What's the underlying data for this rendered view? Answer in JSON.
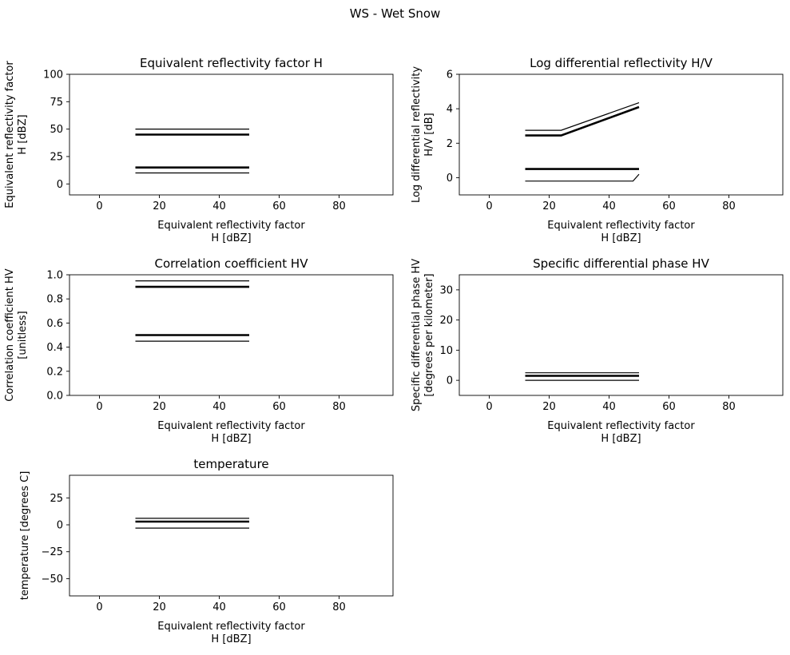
{
  "figure": {
    "title": "WS - Wet Snow"
  },
  "chart_data": [
    {
      "type": "line",
      "title": "Equivalent reflectivity factor H",
      "xlabel": [
        "Equivalent reflectivity factor",
        "H [dBZ]"
      ],
      "ylabel": [
        "Equivalent reflectivity factor",
        "H [dBZ]"
      ],
      "xlim": [
        -10,
        98
      ],
      "ylim": [
        -10,
        100
      ],
      "xticks": [
        0,
        20,
        40,
        60,
        80
      ],
      "yticks": [
        0,
        25,
        50,
        75,
        100
      ],
      "series": [
        {
          "x": [
            12,
            50
          ],
          "y": [
            50,
            50
          ],
          "weight": "thin"
        },
        {
          "x": [
            12,
            50
          ],
          "y": [
            45,
            45
          ],
          "weight": "thick"
        },
        {
          "x": [
            12,
            50
          ],
          "y": [
            15,
            15
          ],
          "weight": "thick"
        },
        {
          "x": [
            12,
            50
          ],
          "y": [
            10,
            10
          ],
          "weight": "thin"
        }
      ]
    },
    {
      "type": "line",
      "title": "Log differential reflectivity H/V",
      "xlabel": [
        "Equivalent reflectivity factor",
        "H [dBZ]"
      ],
      "ylabel": [
        "Log differential reflectivity",
        "H/V [dB]"
      ],
      "xlim": [
        -10,
        98
      ],
      "ylim": [
        -1,
        6
      ],
      "xticks": [
        0,
        20,
        40,
        60,
        80
      ],
      "yticks": [
        0,
        2,
        4,
        6
      ],
      "series": [
        {
          "x": [
            12,
            24,
            50
          ],
          "y": [
            2.75,
            2.75,
            4.35
          ],
          "weight": "thin"
        },
        {
          "x": [
            12,
            24,
            50
          ],
          "y": [
            2.45,
            2.45,
            4.1
          ],
          "weight": "thick"
        },
        {
          "x": [
            12,
            50
          ],
          "y": [
            0.5,
            0.5
          ],
          "weight": "thick"
        },
        {
          "x": [
            12,
            48,
            50
          ],
          "y": [
            -0.2,
            -0.2,
            0.2
          ],
          "weight": "thin"
        }
      ]
    },
    {
      "type": "line",
      "title": "Correlation coefficient HV",
      "xlabel": [
        "Equivalent reflectivity factor",
        "H [dBZ]"
      ],
      "ylabel": [
        "Correlation coefficient HV",
        "[unitless]"
      ],
      "xlim": [
        -10,
        98
      ],
      "ylim": [
        0,
        1
      ],
      "xticks": [
        0,
        20,
        40,
        60,
        80
      ],
      "yticks": [
        0.0,
        0.2,
        0.4,
        0.6,
        0.8,
        1.0
      ],
      "ytick_labels": [
        "0.0",
        "0.2",
        "0.4",
        "0.6",
        "0.8",
        "1.0"
      ],
      "series": [
        {
          "x": [
            12,
            50
          ],
          "y": [
            0.95,
            0.95
          ],
          "weight": "thin"
        },
        {
          "x": [
            12,
            50
          ],
          "y": [
            0.9,
            0.9
          ],
          "weight": "thick"
        },
        {
          "x": [
            12,
            50
          ],
          "y": [
            0.5,
            0.5
          ],
          "weight": "thick"
        },
        {
          "x": [
            12,
            50
          ],
          "y": [
            0.45,
            0.45
          ],
          "weight": "thin"
        }
      ]
    },
    {
      "type": "line",
      "title": "Specific differential phase HV",
      "xlabel": [
        "Equivalent reflectivity factor",
        "H [dBZ]"
      ],
      "ylabel": [
        "Specific differential phase HV",
        "[degrees per kilometer]"
      ],
      "xlim": [
        -10,
        98
      ],
      "ylim": [
        -5,
        35
      ],
      "xticks": [
        0,
        20,
        40,
        60,
        80
      ],
      "yticks": [
        0,
        10,
        20,
        30
      ],
      "series": [
        {
          "x": [
            12,
            50
          ],
          "y": [
            2.5,
            2.5
          ],
          "weight": "thin"
        },
        {
          "x": [
            12,
            50
          ],
          "y": [
            1.5,
            1.5
          ],
          "weight": "thick"
        },
        {
          "x": [
            12,
            50
          ],
          "y": [
            0,
            0
          ],
          "weight": "thin"
        }
      ]
    },
    {
      "type": "line",
      "title": "temperature",
      "xlabel": [
        "Equivalent reflectivity factor",
        "H [dBZ]"
      ],
      "ylabel": [
        "temperature [degrees C]"
      ],
      "xlim": [
        -10,
        98
      ],
      "ylim": [
        -66,
        46
      ],
      "xticks": [
        0,
        20,
        40,
        60,
        80
      ],
      "yticks": [
        -50,
        -25,
        0,
        25
      ],
      "series": [
        {
          "x": [
            12,
            50
          ],
          "y": [
            6,
            6
          ],
          "weight": "thin"
        },
        {
          "x": [
            12,
            50
          ],
          "y": [
            3,
            3
          ],
          "weight": "thick"
        },
        {
          "x": [
            12,
            50
          ],
          "y": [
            -3,
            -3
          ],
          "weight": "thin"
        }
      ]
    }
  ]
}
